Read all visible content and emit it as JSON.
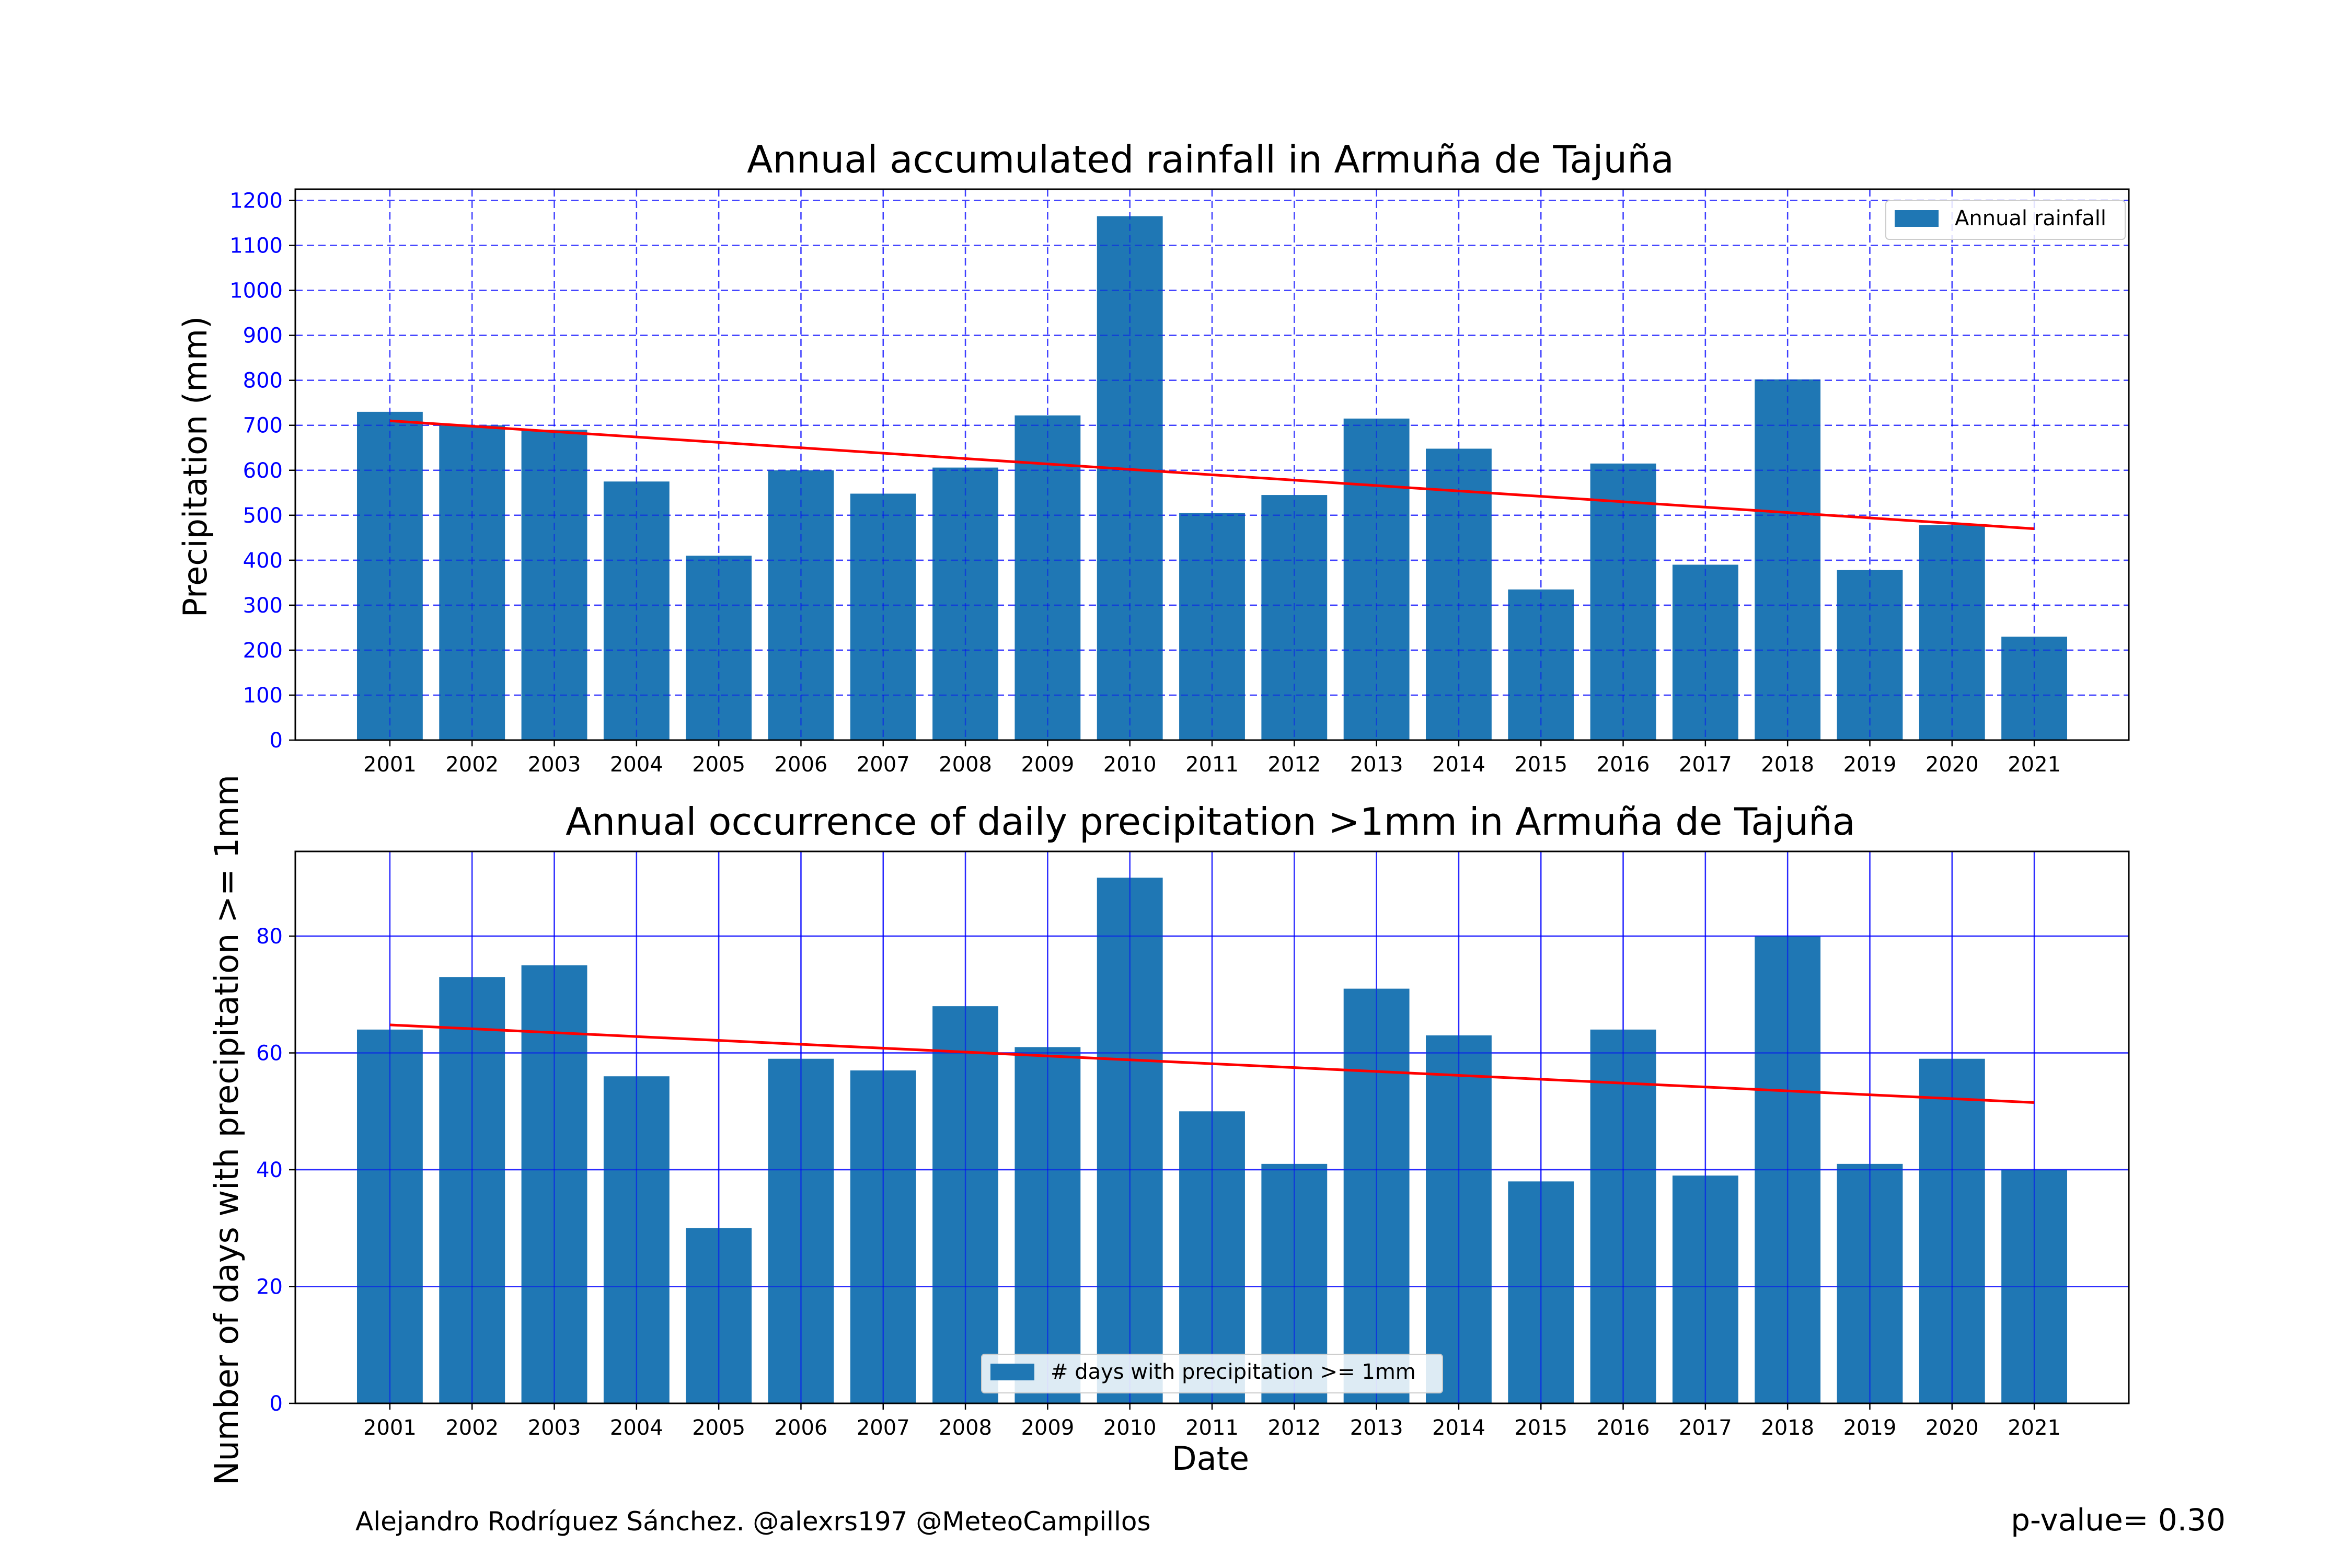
{
  "footer": {
    "credit": "Alejandro Rodríguez Sánchez. @alexrs197 @MeteoCampillos",
    "pvalue": "p-value= 0.30"
  },
  "colors": {
    "bar": "#1f77b4",
    "trend": "#ff0000",
    "grid": "#0000ff",
    "tick_label": "#0000ff"
  },
  "chart_data": [
    {
      "type": "bar",
      "title": "Annual accumulated rainfall in Armuña de Tajuña",
      "xlabel": "",
      "ylabel": "Precipitation (mm)",
      "ylim": [
        0,
        1225
      ],
      "yticks": [
        0,
        100,
        200,
        300,
        400,
        500,
        600,
        700,
        800,
        900,
        1000,
        1100,
        1200
      ],
      "categories": [
        "2001",
        "2002",
        "2003",
        "2004",
        "2005",
        "2006",
        "2007",
        "2008",
        "2009",
        "2010",
        "2011",
        "2012",
        "2013",
        "2014",
        "2015",
        "2016",
        "2017",
        "2018",
        "2019",
        "2020",
        "2021"
      ],
      "series": [
        {
          "name": "Annual rainfall",
          "values": [
            730,
            700,
            690,
            575,
            410,
            600,
            548,
            606,
            722,
            1165,
            505,
            545,
            715,
            648,
            335,
            615,
            390,
            802,
            378,
            478,
            230
          ]
        }
      ],
      "trend": {
        "start": 710,
        "end": 470
      },
      "grid": true,
      "grid_style": "dashed",
      "legend_position": "top-right"
    },
    {
      "type": "bar",
      "title": "Annual occurrence of daily precipitation >1mm in Armuña de Tajuña",
      "xlabel": "Date",
      "ylabel": "Number of days with precipitation >= 1mm",
      "ylim": [
        0,
        94.5
      ],
      "yticks": [
        0,
        20,
        40,
        60,
        80
      ],
      "categories": [
        "2001",
        "2002",
        "2003",
        "2004",
        "2005",
        "2006",
        "2007",
        "2008",
        "2009",
        "2010",
        "2011",
        "2012",
        "2013",
        "2014",
        "2015",
        "2016",
        "2017",
        "2018",
        "2019",
        "2020",
        "2021"
      ],
      "series": [
        {
          "name": "# days with precipitation >= 1mm",
          "values": [
            64,
            73,
            75,
            56,
            30,
            59,
            57,
            68,
            61,
            90,
            50,
            41,
            71,
            63,
            38,
            64,
            39,
            80,
            41,
            59,
            40
          ]
        }
      ],
      "trend": {
        "start": 64.8,
        "end": 51.5
      },
      "grid": true,
      "grid_style": "solid",
      "legend_position": "bottom-center"
    }
  ]
}
